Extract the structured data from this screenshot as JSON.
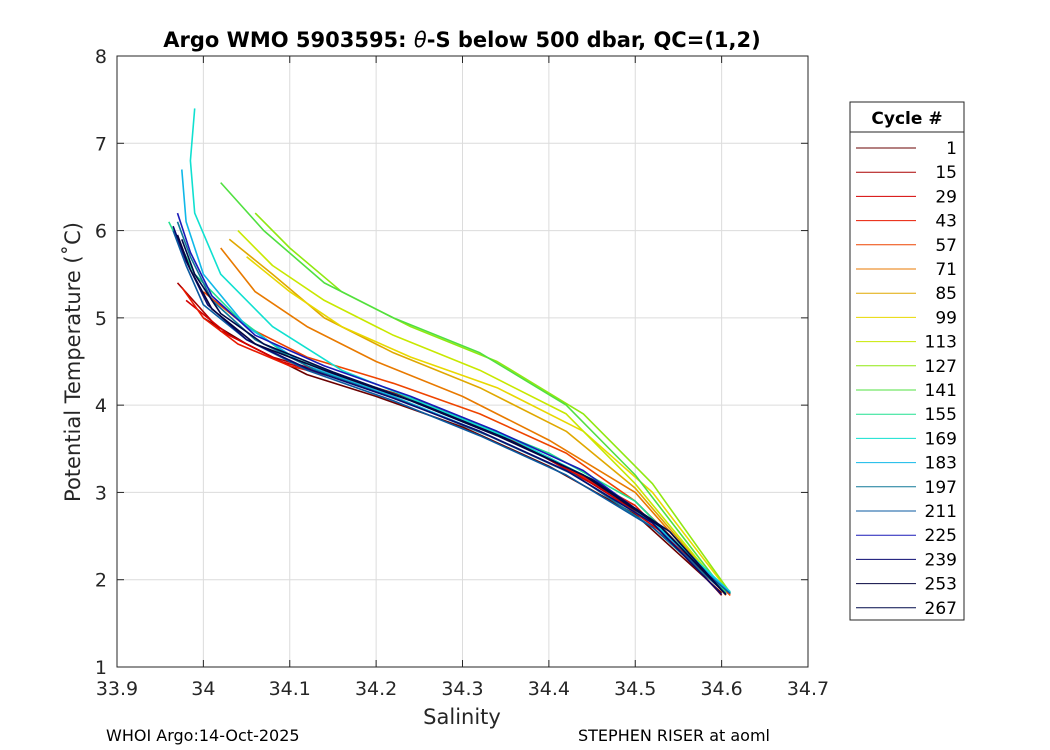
{
  "chart_data": {
    "type": "line",
    "title_prefix": "Argo WMO 5903595: ",
    "title_theta": "θ",
    "title_suffix": "-S below 500 dbar,  QC=(1,2)",
    "xlabel": "Salinity",
    "ylabel": "Potential Temperature (˚C)",
    "xlim": [
      33.9,
      34.7
    ],
    "ylim": [
      1,
      8
    ],
    "xticks": [
      "33.9",
      "34",
      "34.1",
      "34.2",
      "34.3",
      "34.4",
      "34.5",
      "34.6",
      "34.7"
    ],
    "yticks": [
      "1",
      "2",
      "3",
      "4",
      "5",
      "6",
      "7",
      "8"
    ],
    "grid": true,
    "legend": {
      "title": "Cycle #",
      "placement": "right",
      "entries": [
        {
          "label": "1",
          "color": "#6a0000"
        },
        {
          "label": "15",
          "color": "#aa0000"
        },
        {
          "label": "29",
          "color": "#d40000"
        },
        {
          "label": "43",
          "color": "#e81a00"
        },
        {
          "label": "57",
          "color": "#ee4400"
        },
        {
          "label": "71",
          "color": "#e87a00"
        },
        {
          "label": "85",
          "color": "#e0a800"
        },
        {
          "label": "99",
          "color": "#e8d800"
        },
        {
          "label": "113",
          "color": "#c8e800"
        },
        {
          "label": "127",
          "color": "#90e810"
        },
        {
          "label": "141",
          "color": "#50e040"
        },
        {
          "label": "155",
          "color": "#20e090"
        },
        {
          "label": "169",
          "color": "#10e0d0"
        },
        {
          "label": "183",
          "color": "#10b8e8"
        },
        {
          "label": "197",
          "color": "#107898"
        },
        {
          "label": "211",
          "color": "#0a5aa0"
        },
        {
          "label": "225",
          "color": "#1a1ab8"
        },
        {
          "label": "239",
          "color": "#0a0a70"
        },
        {
          "label": "253",
          "color": "#050540"
        },
        {
          "label": "267",
          "color": "#000a4a"
        }
      ]
    },
    "series": [
      {
        "name": "1",
        "color": "#6a0000",
        "x": [
          34.0,
          34.05,
          34.12,
          34.2,
          34.3,
          34.4,
          34.5,
          34.6
        ],
        "y": [
          5.0,
          4.7,
          4.35,
          4.1,
          3.75,
          3.3,
          2.75,
          1.85
        ]
      },
      {
        "name": "15",
        "color": "#aa0000",
        "x": [
          33.97,
          34.02,
          34.08,
          34.15,
          34.25,
          34.35,
          34.45,
          34.53,
          34.6
        ],
        "y": [
          5.4,
          4.85,
          4.55,
          4.35,
          4.05,
          3.65,
          3.1,
          2.6,
          1.82
        ]
      },
      {
        "name": "29",
        "color": "#d40000",
        "x": [
          33.98,
          34.03,
          34.09,
          34.16,
          34.26,
          34.36,
          34.46,
          34.53,
          34.605
        ],
        "y": [
          5.2,
          4.8,
          4.5,
          4.3,
          4.0,
          3.6,
          3.05,
          2.55,
          1.84
        ]
      },
      {
        "name": "43",
        "color": "#e81a00",
        "x": [
          33.975,
          34.0,
          34.04,
          34.1,
          34.2,
          34.3,
          34.4,
          34.5,
          34.6
        ],
        "y": [
          5.35,
          5.0,
          4.7,
          4.45,
          4.2,
          3.85,
          3.4,
          2.85,
          1.83
        ]
      },
      {
        "name": "57",
        "color": "#ee4400",
        "x": [
          34.0,
          34.05,
          34.12,
          34.22,
          34.32,
          34.42,
          34.5,
          34.61
        ],
        "y": [
          5.3,
          4.9,
          4.55,
          4.25,
          3.9,
          3.45,
          2.9,
          1.82
        ]
      },
      {
        "name": "71",
        "color": "#e87a00",
        "x": [
          34.02,
          34.06,
          34.12,
          34.2,
          34.3,
          34.4,
          34.5,
          34.605
        ],
        "y": [
          5.8,
          5.3,
          4.9,
          4.5,
          4.1,
          3.6,
          3.0,
          1.82
        ]
      },
      {
        "name": "85",
        "color": "#e0a800",
        "x": [
          34.03,
          34.08,
          34.14,
          34.22,
          34.32,
          34.42,
          34.5,
          34.605
        ],
        "y": [
          5.9,
          5.5,
          5.0,
          4.6,
          4.2,
          3.7,
          3.05,
          1.83
        ]
      },
      {
        "name": "99",
        "color": "#e8d800",
        "x": [
          34.05,
          34.1,
          34.16,
          34.24,
          34.34,
          34.44,
          34.52,
          34.61
        ],
        "y": [
          5.7,
          5.3,
          4.9,
          4.55,
          4.2,
          3.7,
          3.0,
          1.84
        ]
      },
      {
        "name": "113",
        "color": "#c8e800",
        "x": [
          34.04,
          34.08,
          34.14,
          34.22,
          34.32,
          34.42,
          34.5,
          34.605
        ],
        "y": [
          6.0,
          5.6,
          5.2,
          4.8,
          4.4,
          3.9,
          3.1,
          1.84
        ]
      },
      {
        "name": "127",
        "color": "#90e810",
        "x": [
          34.06,
          34.1,
          34.16,
          34.24,
          34.34,
          34.44,
          34.52,
          34.61
        ],
        "y": [
          6.2,
          5.8,
          5.3,
          4.9,
          4.5,
          3.9,
          3.1,
          1.85
        ]
      },
      {
        "name": "141",
        "color": "#50e040",
        "x": [
          34.02,
          34.07,
          34.14,
          34.22,
          34.32,
          34.42,
          34.5,
          34.605
        ],
        "y": [
          6.55,
          6.0,
          5.4,
          5.0,
          4.6,
          4.0,
          3.2,
          1.85
        ]
      },
      {
        "name": "155",
        "color": "#20e090",
        "x": [
          33.96,
          33.99,
          34.04,
          34.1,
          34.2,
          34.3,
          34.4,
          34.5,
          34.605
        ],
        "y": [
          6.1,
          5.5,
          5.0,
          4.55,
          4.2,
          3.85,
          3.45,
          2.9,
          1.85
        ]
      },
      {
        "name": "169",
        "color": "#10e0d0",
        "x": [
          33.99,
          33.985,
          33.99,
          34.02,
          34.08,
          34.16,
          34.26,
          34.36,
          34.46,
          34.54,
          34.61
        ],
        "y": [
          7.4,
          6.8,
          6.2,
          5.5,
          4.9,
          4.4,
          4.0,
          3.6,
          3.1,
          2.5,
          1.86
        ]
      },
      {
        "name": "183",
        "color": "#10b8e8",
        "x": [
          33.975,
          33.98,
          34.0,
          34.05,
          34.12,
          34.22,
          34.32,
          34.42,
          34.52,
          34.61
        ],
        "y": [
          6.7,
          6.1,
          5.5,
          4.9,
          4.45,
          4.1,
          3.7,
          3.25,
          2.65,
          1.85
        ]
      },
      {
        "name": "197",
        "color": "#107898",
        "x": [
          33.97,
          33.985,
          34.01,
          34.06,
          34.13,
          34.23,
          34.33,
          34.43,
          34.52,
          34.605
        ],
        "y": [
          6.1,
          5.7,
          5.2,
          4.75,
          4.4,
          4.05,
          3.65,
          3.2,
          2.6,
          1.84
        ]
      },
      {
        "name": "211",
        "color": "#0a5aa0",
        "x": [
          33.965,
          33.98,
          34.0,
          34.05,
          34.12,
          34.22,
          34.32,
          34.42,
          34.52,
          34.61
        ],
        "y": [
          6.0,
          5.6,
          5.15,
          4.75,
          4.4,
          4.05,
          3.65,
          3.2,
          2.6,
          1.84
        ]
      },
      {
        "name": "225",
        "color": "#1a1ab8",
        "x": [
          33.97,
          33.985,
          34.01,
          34.06,
          34.14,
          34.24,
          34.34,
          34.44,
          34.53,
          34.605
        ],
        "y": [
          6.2,
          5.75,
          5.25,
          4.8,
          4.45,
          4.1,
          3.7,
          3.25,
          2.6,
          1.83
        ]
      },
      {
        "name": "239",
        "color": "#0a0a70",
        "x": [
          33.965,
          33.98,
          34.005,
          34.05,
          34.12,
          34.22,
          34.32,
          34.42,
          34.52,
          34.6
        ],
        "y": [
          6.05,
          5.65,
          5.15,
          4.75,
          4.42,
          4.08,
          3.7,
          3.25,
          2.65,
          1.83
        ]
      },
      {
        "name": "253",
        "color": "#050540",
        "x": [
          33.97,
          33.985,
          34.01,
          34.06,
          34.14,
          34.24,
          34.34,
          34.44,
          34.53,
          34.605
        ],
        "y": [
          5.95,
          5.55,
          5.1,
          4.7,
          4.4,
          4.05,
          3.65,
          3.2,
          2.6,
          1.83
        ]
      },
      {
        "name": "267",
        "color": "#000a4a",
        "x": [
          33.975,
          33.99,
          34.02,
          34.07,
          34.15,
          34.25,
          34.35,
          34.45,
          34.54,
          34.605
        ],
        "y": [
          5.9,
          5.5,
          5.05,
          4.7,
          4.38,
          4.02,
          3.62,
          3.15,
          2.55,
          1.83
        ]
      }
    ]
  },
  "footer": {
    "left": "WHOI Argo:14-Oct-2025",
    "right": "STEPHEN RISER at aoml"
  }
}
